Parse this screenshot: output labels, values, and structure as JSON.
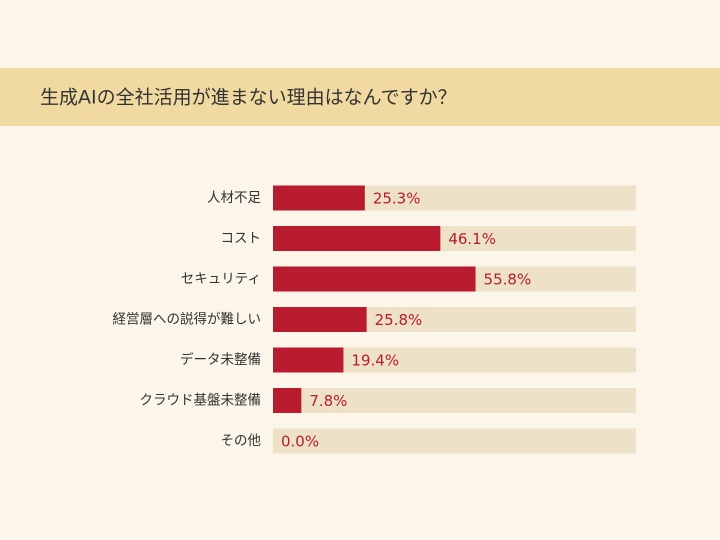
{
  "chart_data": {
    "type": "bar",
    "title": "生成AIの全社活用が進まない理由はなんですか？",
    "categories": [
      "人材不足",
      "コスト",
      "セキュリティ",
      "経営層への説得が難しい",
      "データ未整備",
      "クラウド基盤未整備",
      "その他"
    ],
    "values": [
      25.3,
      46.1,
      55.8,
      25.8,
      19.4,
      7.8,
      0.0
    ],
    "value_labels": [
      "25.3%",
      "46.1%",
      "55.8%",
      "25.8%",
      "19.4%",
      "7.8%",
      "0.0%"
    ],
    "xlim": [
      0,
      100
    ],
    "color": "#b81c2e",
    "track_color": "#ede1c8"
  }
}
